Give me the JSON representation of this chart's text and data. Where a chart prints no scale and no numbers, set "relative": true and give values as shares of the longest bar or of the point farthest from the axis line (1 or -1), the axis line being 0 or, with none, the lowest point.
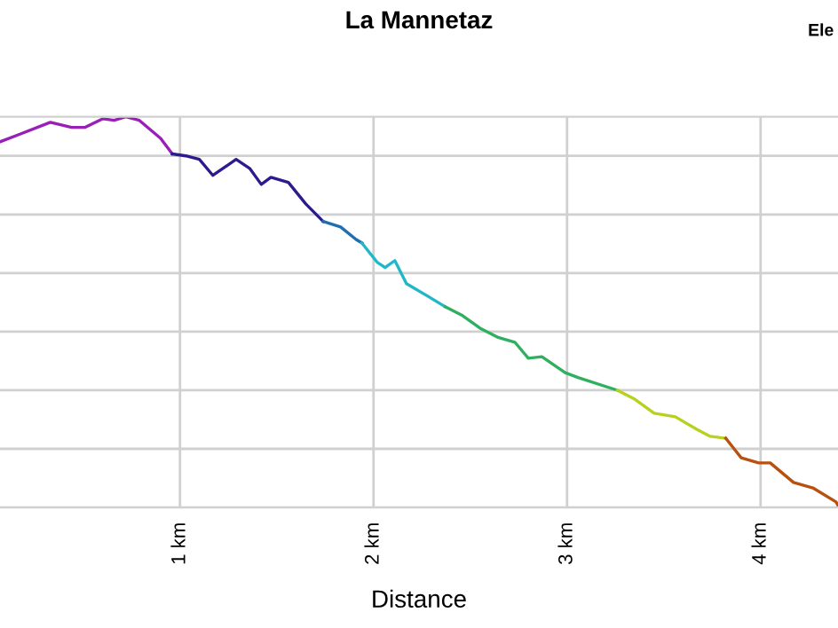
{
  "chart_data": {
    "type": "line",
    "title": "La Mannetaz",
    "xlabel": "Distance",
    "annotations": [
      "Ele"
    ],
    "relative": true,
    "grid": true,
    "line_style": "solid",
    "marker": "none",
    "xlim": [
      0.07,
      4.4
    ],
    "xticks": [
      {
        "value": 1,
        "label": "1 km"
      },
      {
        "value": 2,
        "label": "2 km"
      },
      {
        "value": 3,
        "label": "3 km"
      },
      {
        "value": 4,
        "label": "4 km"
      }
    ],
    "series": [
      {
        "color": "#9a1fb8",
        "x": [
          0.07,
          0.17,
          0.33,
          0.44,
          0.51,
          0.6,
          0.66,
          0.72,
          0.79,
          0.9,
          0.96
        ],
        "values": [
          0.936,
          0.955,
          0.986,
          0.973,
          0.973,
          0.995,
          0.991,
          1.0,
          0.991,
          0.945,
          0.905
        ]
      },
      {
        "color": "#2b1b8f",
        "x": [
          0.96,
          1.03,
          1.1,
          1.17,
          1.29,
          1.36,
          1.42,
          1.47,
          1.56,
          1.65,
          1.74
        ],
        "values": [
          0.905,
          0.9,
          0.891,
          0.85,
          0.891,
          0.868,
          0.827,
          0.845,
          0.832,
          0.777,
          0.732
        ]
      },
      {
        "color": "#1f6fb0",
        "x": [
          1.74,
          1.83,
          1.91,
          1.94
        ],
        "values": [
          0.732,
          0.718,
          0.686,
          0.677
        ]
      },
      {
        "color": "#20b8c8",
        "x": [
          1.94,
          2.02,
          2.06,
          2.11,
          2.17,
          2.28,
          2.37
        ],
        "values": [
          0.677,
          0.627,
          0.614,
          0.632,
          0.573,
          0.541,
          0.514
        ]
      },
      {
        "color": "#2fb060",
        "x": [
          2.37,
          2.46,
          2.55,
          2.64,
          2.73,
          2.8,
          2.87,
          2.99,
          3.06,
          3.26
        ],
        "values": [
          0.514,
          0.491,
          0.459,
          0.436,
          0.423,
          0.382,
          0.386,
          0.345,
          0.332,
          0.3
        ]
      },
      {
        "color": "#b8d020",
        "x": [
          3.26,
          3.35,
          3.45,
          3.56,
          3.67,
          3.74,
          3.82
        ],
        "values": [
          0.3,
          0.277,
          0.241,
          0.232,
          0.2,
          0.182,
          0.177
        ]
      },
      {
        "color": "#b85010",
        "x": [
          3.82,
          3.9,
          3.99,
          4.05,
          4.17,
          4.27,
          4.39,
          4.4
        ],
        "values": [
          0.177,
          0.127,
          0.114,
          0.114,
          0.064,
          0.05,
          0.014,
          0.005
        ]
      }
    ]
  }
}
